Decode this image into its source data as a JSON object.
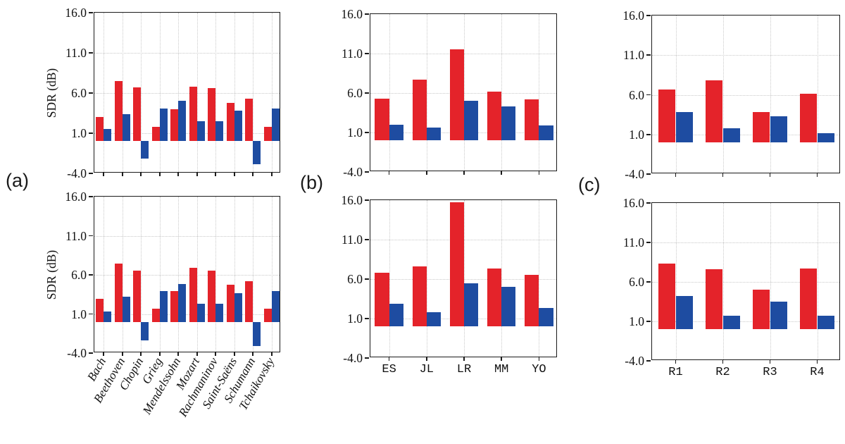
{
  "figure": {
    "background": "#ffffff",
    "panel_labels": [
      {
        "id": "a",
        "text": "(a)"
      },
      {
        "id": "b",
        "text": "(b)"
      },
      {
        "id": "c",
        "text": "(c)"
      }
    ],
    "colors": {
      "series_red": "#e4232a",
      "series_blue": "#1e4ca1",
      "spine": "#1a1a1a",
      "grid": "#c9c9c9",
      "text": "#111111"
    }
  },
  "chart_data": [
    {
      "id": "a_top",
      "panel": "a",
      "type": "bar",
      "title": "",
      "xlabel": "",
      "ylabel": "SDR (dB)",
      "categories": [
        "Bach",
        "Beethoven",
        "Chopin",
        "Grieg",
        "Mendelssohn",
        "Mozart",
        "Rachmaninov",
        "Saint-Saëns",
        "Schumann",
        "Tchaikovsky"
      ],
      "series": [
        {
          "name": "red",
          "color": "#e4232a",
          "values": [
            3.0,
            7.5,
            6.7,
            1.8,
            4.0,
            6.8,
            6.6,
            4.8,
            5.3,
            1.8
          ]
        },
        {
          "name": "blue",
          "color": "#1e4ca1",
          "values": [
            1.5,
            3.4,
            -2.2,
            4.1,
            5.0,
            2.5,
            2.5,
            3.8,
            -2.9,
            4.1
          ]
        }
      ],
      "ylim": [
        -4,
        16
      ],
      "yticks": {
        "values": [
          -4,
          1,
          6,
          11,
          16
        ],
        "labels": [
          "-4.0",
          "1.0",
          "6.0",
          "11.0",
          "16.0"
        ]
      },
      "grid": true,
      "legend": false,
      "xticklabels_visible": false,
      "xticklabel_rotation": 0,
      "xticklabel_style": "italic-serif"
    },
    {
      "id": "a_bot",
      "panel": "a",
      "type": "bar",
      "title": "",
      "xlabel": "",
      "ylabel": "SDR (dB)",
      "categories": [
        "Bach",
        "Beethoven",
        "Chopin",
        "Grieg",
        "Mendelssohn",
        "Mozart",
        "Rachmaninov",
        "Saint-Saëns",
        "Schumann",
        "Tchaikovsky"
      ],
      "series": [
        {
          "name": "red",
          "color": "#e4232a",
          "values": [
            2.9,
            7.4,
            6.5,
            1.7,
            3.9,
            6.9,
            6.5,
            4.7,
            5.2,
            1.7
          ]
        },
        {
          "name": "blue",
          "color": "#1e4ca1",
          "values": [
            1.3,
            3.2,
            -2.4,
            3.9,
            4.8,
            2.3,
            2.3,
            3.7,
            -3.1,
            3.9
          ]
        }
      ],
      "ylim": [
        -4,
        16
      ],
      "yticks": {
        "values": [
          -4,
          1,
          6,
          11,
          16
        ],
        "labels": [
          "-4.0",
          "1.0",
          "6.0",
          "11.0",
          "16.0"
        ]
      },
      "grid": true,
      "legend": false,
      "xticklabels_visible": true,
      "xticklabel_rotation": 60,
      "xticklabel_style": "italic-serif"
    },
    {
      "id": "b_top",
      "panel": "b",
      "type": "bar",
      "title": "",
      "xlabel": "",
      "ylabel": "",
      "categories": [
        "ES",
        "JL",
        "LR",
        "MM",
        "YO"
      ],
      "series": [
        {
          "name": "red",
          "color": "#e4232a",
          "values": [
            5.3,
            7.7,
            11.5,
            6.2,
            5.2
          ]
        },
        {
          "name": "blue",
          "color": "#1e4ca1",
          "values": [
            2.0,
            1.6,
            5.0,
            4.3,
            1.9
          ]
        }
      ],
      "ylim": [
        -4,
        16
      ],
      "yticks": {
        "values": [
          -4,
          1,
          6,
          11,
          16
        ],
        "labels": [
          "-4.0",
          "1.0",
          "6.0",
          "11.0",
          "16.0"
        ]
      },
      "grid": true,
      "legend": false,
      "xticklabels_visible": false,
      "xticklabel_rotation": 0,
      "xticklabel_style": "mono"
    },
    {
      "id": "b_bot",
      "panel": "b",
      "type": "bar",
      "title": "",
      "xlabel": "",
      "ylabel": "",
      "categories": [
        "ES",
        "JL",
        "LR",
        "MM",
        "YO"
      ],
      "series": [
        {
          "name": "red",
          "color": "#e4232a",
          "values": [
            6.8,
            7.6,
            15.7,
            7.3,
            6.5
          ]
        },
        {
          "name": "blue",
          "color": "#1e4ca1",
          "values": [
            2.9,
            1.8,
            5.5,
            5.0,
            2.3
          ]
        }
      ],
      "ylim": [
        -4,
        16
      ],
      "yticks": {
        "values": [
          -4,
          1,
          6,
          11,
          16
        ],
        "labels": [
          "-4.0",
          "1.0",
          "6.0",
          "11.0",
          "16.0"
        ]
      },
      "grid": true,
      "legend": false,
      "xticklabels_visible": true,
      "xticklabel_rotation": 0,
      "xticklabel_style": "mono"
    },
    {
      "id": "c_top",
      "panel": "c",
      "type": "bar",
      "title": "",
      "xlabel": "",
      "ylabel": "",
      "categories": [
        "R1",
        "R2",
        "R3",
        "R4"
      ],
      "series": [
        {
          "name": "red",
          "color": "#e4232a",
          "values": [
            6.7,
            7.8,
            3.8,
            6.1
          ]
        },
        {
          "name": "blue",
          "color": "#1e4ca1",
          "values": [
            3.8,
            1.8,
            3.3,
            1.2
          ]
        }
      ],
      "ylim": [
        -4,
        16
      ],
      "yticks": {
        "values": [
          -4,
          1,
          6,
          11,
          16
        ],
        "labels": [
          "-4.0",
          "1.0",
          "6.0",
          "11.0",
          "16.0"
        ]
      },
      "grid": true,
      "legend": false,
      "xticklabels_visible": false,
      "xticklabel_rotation": 0,
      "xticklabel_style": "mono"
    },
    {
      "id": "c_bot",
      "panel": "c",
      "type": "bar",
      "title": "",
      "xlabel": "",
      "ylabel": "",
      "categories": [
        "R1",
        "R2",
        "R3",
        "R4"
      ],
      "series": [
        {
          "name": "red",
          "color": "#e4232a",
          "values": [
            8.3,
            7.6,
            5.0,
            7.7
          ]
        },
        {
          "name": "blue",
          "color": "#1e4ca1",
          "values": [
            4.2,
            1.7,
            3.5,
            1.7
          ]
        }
      ],
      "ylim": [
        -4,
        16
      ],
      "yticks": {
        "values": [
          -4,
          1,
          6,
          11,
          16
        ],
        "labels": [
          "-4.0",
          "1.0",
          "6.0",
          "11.0",
          "16.0"
        ]
      },
      "grid": true,
      "legend": false,
      "xticklabels_visible": true,
      "xticklabel_rotation": 0,
      "xticklabel_style": "mono"
    }
  ]
}
